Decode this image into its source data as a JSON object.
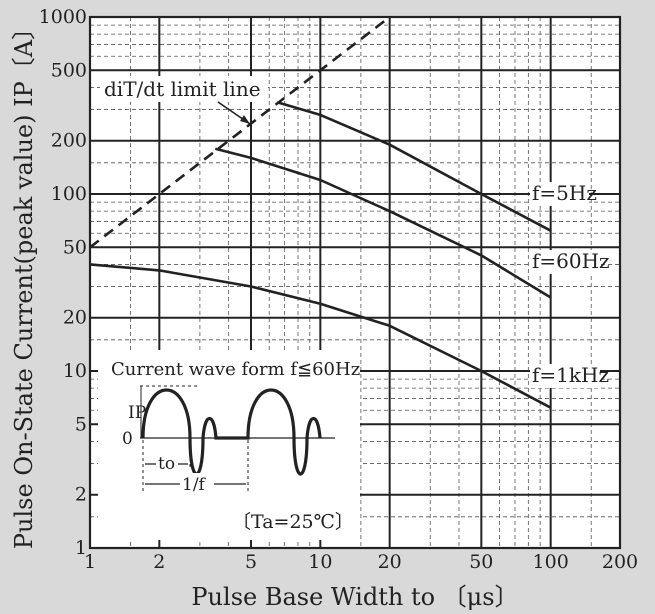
{
  "chart_data": {
    "type": "line",
    "xscale": "log",
    "yscale": "log",
    "xlim": [
      1,
      200
    ],
    "ylim": [
      1,
      1000
    ],
    "xlabel": "Pulse Base Width  to 〔μs〕",
    "ylabel": "Pulse On-State Current(peak value) IP〔A〕",
    "x_ticks": [
      1,
      2,
      5,
      10,
      20,
      50,
      100,
      200
    ],
    "x_tick_labels": [
      "1",
      "2",
      "5",
      "10",
      "20",
      "50",
      "100",
      "200"
    ],
    "y_ticks": [
      1,
      2,
      5,
      10,
      20,
      50,
      100,
      200,
      500,
      1000
    ],
    "y_tick_labels": [
      "1",
      "2",
      "5",
      "10",
      "20",
      "50",
      "100",
      "200",
      "500",
      "1000"
    ],
    "grid": true,
    "series": [
      {
        "name": "f=5Hz",
        "style": "solid",
        "x": [
          6.5,
          10,
          20,
          50,
          100
        ],
        "y": [
          330,
          280,
          190,
          100,
          62
        ]
      },
      {
        "name": "f=60Hz",
        "style": "solid",
        "x": [
          3.5,
          5,
          10,
          20,
          50,
          100
        ],
        "y": [
          180,
          160,
          120,
          80,
          45,
          26
        ]
      },
      {
        "name": "f=1kHz",
        "style": "solid",
        "x": [
          1,
          2,
          5,
          10,
          20,
          50,
          100
        ],
        "y": [
          40,
          37,
          30,
          24,
          18,
          10,
          6.2
        ]
      },
      {
        "name": "diT/dt limit line",
        "style": "dashed",
        "x": [
          1,
          20
        ],
        "y": [
          50,
          1000
        ]
      }
    ],
    "annotations": {
      "limit_line_label": "diT/dt limit line",
      "curve_labels": [
        "f=5Hz",
        "f=60Hz",
        "f=1kHz"
      ],
      "condition": "〔Ta=25℃〕"
    },
    "inset": {
      "title": "Current wave form f≦60Hz",
      "ip_label": "IP",
      "zero_label": "0",
      "to_label": "to",
      "period_label": "1/f"
    }
  },
  "colors": {
    "background": "#d9d9d9",
    "plot_area": "#ffffff",
    "ink": "#222222"
  }
}
